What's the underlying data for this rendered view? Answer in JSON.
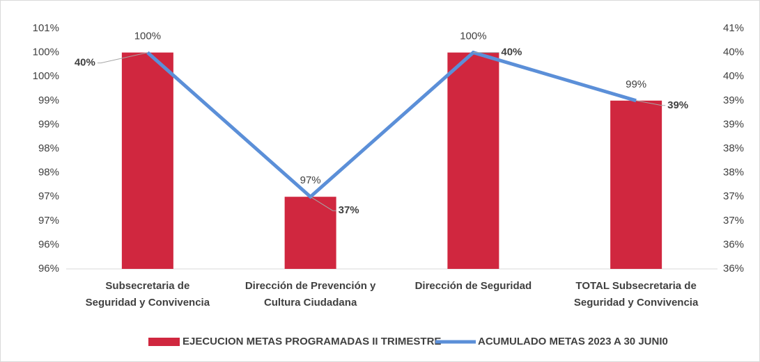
{
  "chart_data": {
    "type": "bar-line",
    "categories": [
      [
        "Subsecretaria de",
        "Seguridad y Convivencia"
      ],
      [
        "Dirección de Prevención y",
        "Cultura Ciudadana"
      ],
      [
        "Dirección de Seguridad"
      ],
      [
        "TOTAL  Subsecretaria de",
        "Seguridad y Convivencia"
      ]
    ],
    "series": [
      {
        "name": "EJECUCION  METAS PROGRAMADAS  II TRIMESTRE",
        "type": "bar",
        "color": "#d0273f",
        "values": [
          100,
          97,
          100,
          99
        ],
        "value_labels": [
          "100%",
          "97%",
          "100%",
          "99%"
        ]
      },
      {
        "name": "ACUMULADO   METAS 2023 A 30 JUNI0",
        "type": "line",
        "axis": "y2",
        "color": "#5b8fd8",
        "values": [
          40,
          37,
          40,
          39
        ],
        "value_labels": [
          "40%",
          "37%",
          "40%",
          "39%"
        ]
      }
    ],
    "ylim": [
      95.5,
      100.5
    ],
    "yticks": [
      {
        "value": 95.5,
        "label": "96%"
      },
      {
        "value": 96,
        "label": "96%"
      },
      {
        "value": 96.5,
        "label": "97%"
      },
      {
        "value": 97,
        "label": "97%"
      },
      {
        "value": 97.5,
        "label": "98%"
      },
      {
        "value": 98,
        "label": "98%"
      },
      {
        "value": 98.5,
        "label": "99%"
      },
      {
        "value": 99,
        "label": "99%"
      },
      {
        "value": 99.5,
        "label": "100%"
      },
      {
        "value": 100,
        "label": "100%"
      },
      {
        "value": 100.5,
        "label": "101%"
      }
    ],
    "y2lim": [
      35.5,
      40.5
    ],
    "y2ticks": [
      {
        "value": 35.5,
        "label": "36%"
      },
      {
        "value": 36,
        "label": "36%"
      },
      {
        "value": 36.5,
        "label": "37%"
      },
      {
        "value": 37,
        "label": "37%"
      },
      {
        "value": 37.5,
        "label": "38%"
      },
      {
        "value": 38,
        "label": "38%"
      },
      {
        "value": 38.5,
        "label": "39%"
      },
      {
        "value": 39,
        "label": "39%"
      },
      {
        "value": 39.5,
        "label": "40%"
      },
      {
        "value": 40,
        "label": "40%"
      },
      {
        "value": 40.5,
        "label": "41%"
      }
    ],
    "legend": "bottom"
  }
}
